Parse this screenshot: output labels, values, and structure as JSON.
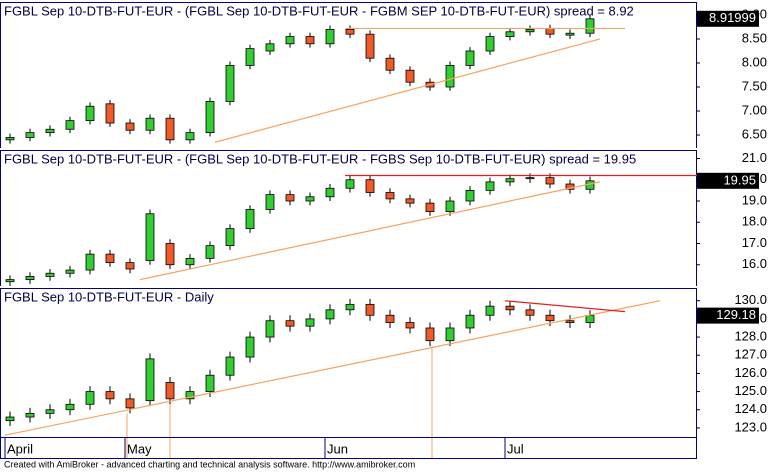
{
  "chart_data": [
    {
      "type": "candlestick",
      "title": "FGBL Sep 10-DTB-FUT-EUR - (FGBL Sep 10-DTB-FUT-EUR - FGBM SEP 10-DTB-FUT-EUR) spread = 8.92",
      "up_color": "#33cc33",
      "down_color": "#f05a28",
      "open": [
        6.4,
        6.45,
        6.55,
        6.62,
        6.8,
        7.15,
        6.75,
        6.6,
        6.85,
        6.4,
        6.55,
        7.2,
        7.95,
        8.25,
        8.4,
        8.55,
        8.4,
        8.7,
        8.6,
        8.1,
        7.85,
        7.6,
        7.5,
        7.95,
        8.25,
        8.55,
        8.65,
        8.72,
        8.58,
        8.62
      ],
      "high": [
        6.53,
        6.63,
        6.7,
        6.88,
        7.18,
        7.23,
        6.83,
        6.93,
        6.93,
        6.63,
        7.28,
        8.03,
        8.38,
        8.48,
        8.63,
        8.63,
        8.78,
        8.78,
        8.68,
        8.18,
        7.93,
        7.68,
        8.03,
        8.33,
        8.63,
        8.73,
        8.78,
        8.8,
        8.7,
        9.0
      ],
      "low": [
        6.32,
        6.37,
        6.47,
        6.54,
        6.72,
        6.67,
        6.52,
        6.52,
        6.32,
        6.32,
        6.47,
        7.12,
        7.87,
        8.17,
        8.32,
        8.32,
        8.32,
        8.52,
        8.02,
        7.77,
        7.52,
        7.42,
        7.42,
        7.87,
        8.17,
        8.47,
        8.57,
        8.52,
        8.5,
        8.54
      ],
      "close": [
        6.45,
        6.55,
        6.62,
        6.8,
        7.1,
        6.75,
        6.6,
        6.85,
        6.4,
        6.55,
        7.2,
        7.95,
        8.3,
        8.4,
        8.55,
        8.4,
        8.7,
        8.6,
        8.1,
        7.85,
        7.6,
        7.5,
        7.95,
        8.25,
        8.55,
        8.65,
        8.7,
        8.6,
        8.62,
        8.92
      ],
      "last_value": 8.91999,
      "ylim": [
        6.23,
        9.27
      ],
      "yticks": [
        {
          "value": 6.5,
          "label": "6.50"
        },
        {
          "value": 7,
          "label": "7.00"
        },
        {
          "value": 7.5,
          "label": "7.50"
        },
        {
          "value": 8,
          "label": "8.00"
        },
        {
          "value": 8.5,
          "label": "8.50"
        },
        {
          "value": 9,
          "label": "9.00"
        }
      ],
      "trendlines": [
        {
          "color": "#f4a460",
          "x": [
            10.25,
            29.5
          ],
          "values": [
            6.35,
            8.5
          ]
        },
        {
          "color": "#f4a460",
          "x": [
            16.75,
            30.75
          ],
          "values": [
            8.72,
            8.72
          ]
        }
      ]
    },
    {
      "type": "candlestick",
      "title": "FGBL Sep 10-DTB-FUT-EUR - (FGBL Sep 10-DTB-FUT-EUR - FGBS Sep 10-DTB-FUT-EUR) spread = 19.95",
      "up_color": "#33cc33",
      "down_color": "#f05a28",
      "open": [
        15.2,
        15.3,
        15.45,
        15.6,
        15.75,
        16.5,
        16.1,
        16.2,
        17.0,
        16.0,
        16.3,
        16.9,
        17.7,
        18.6,
        19.3,
        19.0,
        19.2,
        19.6,
        20.0,
        19.4,
        19.1,
        18.9,
        18.5,
        19.0,
        19.5,
        19.9,
        20.05,
        20.1,
        19.8,
        19.55
      ],
      "high": [
        15.5,
        15.65,
        15.8,
        15.95,
        16.7,
        16.7,
        16.3,
        18.6,
        17.2,
        16.5,
        17.1,
        17.9,
        18.8,
        19.5,
        19.5,
        19.4,
        19.8,
        20.2,
        20.2,
        19.6,
        19.3,
        19.1,
        19.2,
        19.7,
        20.1,
        20.25,
        20.3,
        20.3,
        20.0,
        20.15
      ],
      "low": [
        15.0,
        15.1,
        15.25,
        15.4,
        15.55,
        15.9,
        15.6,
        16.0,
        15.8,
        15.8,
        16.1,
        16.7,
        17.5,
        18.4,
        18.8,
        18.8,
        19.0,
        19.4,
        19.2,
        18.9,
        18.7,
        18.3,
        18.3,
        18.8,
        19.3,
        19.7,
        19.85,
        19.6,
        19.35,
        19.35
      ],
      "close": [
        15.3,
        15.45,
        15.6,
        15.75,
        16.5,
        16.1,
        15.8,
        18.4,
        16.0,
        16.3,
        16.9,
        17.7,
        18.6,
        19.3,
        19.0,
        19.2,
        19.6,
        20.0,
        19.4,
        19.1,
        18.9,
        18.5,
        19.0,
        19.5,
        19.9,
        20.05,
        20.1,
        19.8,
        19.55,
        19.95
      ],
      "last_value": 19.95,
      "ylim": [
        15.0,
        21.4
      ],
      "yticks": [
        {
          "value": 16,
          "label": "16.0"
        },
        {
          "value": 17,
          "label": "17.0"
        },
        {
          "value": 18,
          "label": "18.0"
        },
        {
          "value": 19,
          "label": "19.0"
        },
        {
          "value": 20,
          "label": "20.0"
        },
        {
          "value": 21,
          "label": "21.0"
        }
      ],
      "trendlines": [
        {
          "color": "#e02020",
          "x": [
            16.75,
            34.5
          ],
          "values": [
            20.2,
            20.2
          ]
        },
        {
          "color": "#f4a460",
          "x": [
            6.5,
            29.5
          ],
          "values": [
            15.3,
            19.9
          ]
        }
      ]
    },
    {
      "type": "candlestick",
      "title": "FGBL Sep 10-DTB-FUT-EUR - Daily",
      "up_color": "#33cc33",
      "down_color": "#f05a28",
      "categories": [
        "April",
        null,
        null,
        null,
        null,
        null,
        "May",
        null,
        null,
        null,
        null,
        null,
        null,
        null,
        null,
        null,
        "Jun",
        null,
        null,
        null,
        null,
        null,
        null,
        null,
        null,
        "Jul",
        null,
        null,
        null,
        null
      ],
      "open": [
        123.4,
        123.6,
        123.8,
        124.0,
        124.3,
        125.0,
        124.6,
        124.5,
        125.5,
        124.6,
        125.0,
        125.9,
        126.9,
        128.0,
        128.9,
        128.6,
        129.0,
        129.5,
        129.8,
        129.2,
        128.8,
        128.5,
        127.8,
        128.5,
        129.2,
        129.7,
        129.5,
        129.2,
        128.9,
        128.8
      ],
      "high": [
        123.9,
        124.1,
        124.3,
        124.6,
        125.3,
        125.3,
        124.9,
        127.1,
        125.8,
        125.3,
        126.2,
        127.2,
        128.3,
        129.2,
        129.2,
        129.3,
        129.8,
        130.1,
        130.1,
        129.5,
        129.1,
        128.8,
        128.8,
        129.5,
        130.0,
        130.0,
        129.8,
        129.5,
        129.2,
        129.48
      ],
      "low": [
        123.1,
        123.3,
        123.5,
        123.7,
        124.0,
        124.3,
        123.8,
        124.2,
        124.3,
        124.3,
        124.7,
        125.6,
        126.6,
        127.7,
        128.3,
        128.3,
        128.7,
        129.2,
        128.9,
        128.5,
        128.2,
        127.5,
        127.5,
        128.2,
        128.9,
        129.2,
        128.9,
        128.6,
        128.5,
        128.5
      ],
      "close": [
        123.6,
        123.8,
        124.0,
        124.3,
        125.0,
        124.6,
        124.1,
        126.8,
        124.6,
        125.0,
        125.9,
        126.9,
        128.0,
        128.9,
        128.6,
        129.0,
        129.5,
        129.8,
        129.2,
        128.8,
        128.5,
        127.8,
        128.5,
        129.2,
        129.7,
        129.5,
        129.2,
        128.9,
        128.8,
        129.18
      ],
      "last_value": 129.18,
      "ylim": [
        122.5,
        130.7
      ],
      "yticks": [
        {
          "value": 123,
          "label": "123.0"
        },
        {
          "value": 124,
          "label": "124.0"
        },
        {
          "value": 125,
          "label": "125.0"
        },
        {
          "value": 126,
          "label": "126.0"
        },
        {
          "value": 127,
          "label": "127.0"
        },
        {
          "value": 128,
          "label": "128.0"
        },
        {
          "value": 129,
          "label": "129.0"
        },
        {
          "value": 130,
          "label": "130.0"
        }
      ],
      "trendlines": [
        {
          "color": "#f4a460",
          "x": [
            -0.25,
            32.5
          ],
          "values": [
            122.6,
            130.0
          ]
        },
        {
          "color": "#e02020",
          "x": [
            24.75,
            30.75
          ],
          "values": [
            130.0,
            129.4
          ]
        }
      ],
      "vlines": {
        "color": "#f4a460",
        "x": [
          5.85,
          8,
          21.1
        ]
      }
    }
  ],
  "footer": "Created with AmiBroker - advanced charting and technical analysis software. http://www.amibroker.com"
}
